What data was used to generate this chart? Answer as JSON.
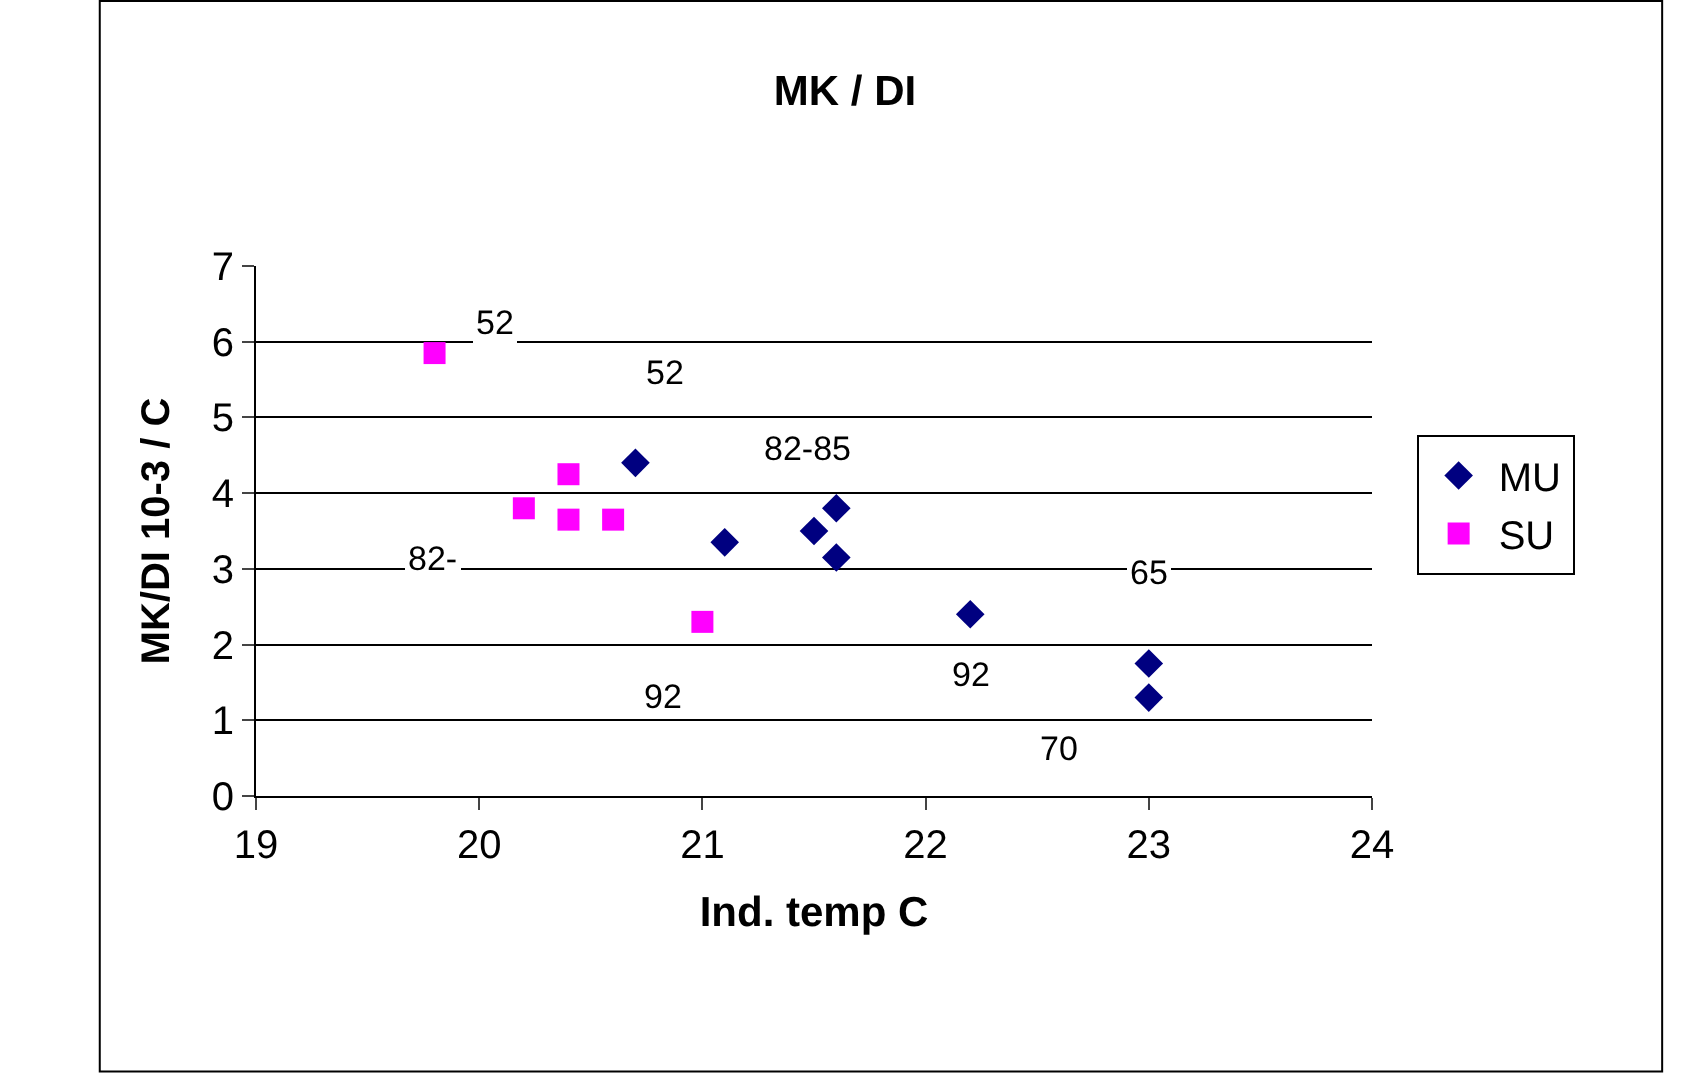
{
  "chart_data": {
    "type": "scatter",
    "title": "MK / DI",
    "xlabel": "Ind. temp C",
    "ylabel": "MK/DI 10-3 / C",
    "series": [
      {
        "name": "MU",
        "color": "#000080",
        "marker": "diamond",
        "x": [
          20.7,
          21.1,
          21.5,
          21.6,
          21.6,
          22.2,
          23.0,
          23.0
        ],
        "values": [
          4.4,
          3.35,
          3.5,
          3.8,
          3.15,
          2.4,
          1.75,
          1.3
        ]
      },
      {
        "name": "SU",
        "color": "#ff00ff",
        "marker": "square",
        "x": [
          19.8,
          20.2,
          20.4,
          20.4,
          20.6,
          21.0
        ],
        "values": [
          5.85,
          3.8,
          4.25,
          3.65,
          3.65,
          2.3
        ]
      }
    ],
    "annotations": [
      {
        "text": "52",
        "x": 19.8,
        "y": 5.85
      },
      {
        "text": "52",
        "x": 20.7,
        "y": 4.4
      },
      {
        "text": "82-85",
        "x": 21.6,
        "y": 3.8
      },
      {
        "text": "82-",
        "x": 20.2,
        "y": 3.8
      },
      {
        "text": "92",
        "x": 21.0,
        "y": 2.3
      },
      {
        "text": "92",
        "x": 22.2,
        "y": 2.4
      },
      {
        "text": "65",
        "x": 23.0,
        "y": 1.75
      },
      {
        "text": "70",
        "x": 23.0,
        "y": 1.3
      }
    ],
    "xlim": [
      19,
      24
    ],
    "xticks": [
      19,
      20,
      21,
      22,
      23,
      24
    ],
    "ylim": [
      0,
      7
    ],
    "yticks": [
      0,
      1,
      2,
      3,
      4,
      5,
      6,
      7
    ],
    "grid": "y",
    "legend": "right"
  }
}
